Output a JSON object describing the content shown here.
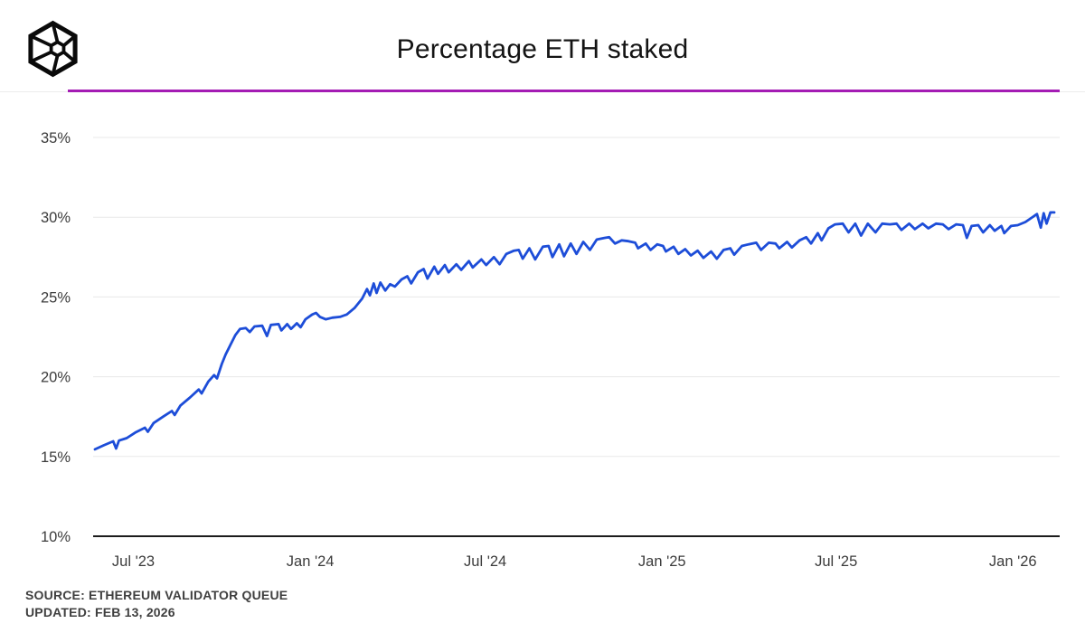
{
  "header": {
    "title": "Percentage ETH staked",
    "logo_name": "blockworks-cube-logo",
    "accent_color": "#a41cb4"
  },
  "footer": {
    "source": "SOURCE: ETHEREUM VALIDATOR QUEUE",
    "updated": "UPDATED: FEB 13, 2026"
  },
  "chart_data": {
    "type": "line",
    "title": "Percentage ETH staked",
    "xlabel": "",
    "ylabel": "",
    "ylim": [
      10,
      35
    ],
    "xlim": [
      "2023-05-22",
      "2026-02-13"
    ],
    "grid": "horizontal",
    "legend": "none",
    "y_ticks": [
      {
        "value": 10,
        "label": "10%"
      },
      {
        "value": 15,
        "label": "15%"
      },
      {
        "value": 20,
        "label": "20%"
      },
      {
        "value": 25,
        "label": "25%"
      },
      {
        "value": 30,
        "label": "30%"
      },
      {
        "value": 35,
        "label": "35%"
      }
    ],
    "x_ticks": [
      {
        "date": "2023-07-01",
        "label": "Jul '23"
      },
      {
        "date": "2024-01-01",
        "label": "Jan '24"
      },
      {
        "date": "2024-07-01",
        "label": "Jul '24"
      },
      {
        "date": "2025-01-01",
        "label": "Jan '25"
      },
      {
        "date": "2025-07-01",
        "label": "Jul '25"
      },
      {
        "date": "2026-01-01",
        "label": "Jan '26"
      }
    ],
    "series": [
      {
        "name": "Percentage ETH staked",
        "color": "#1d4dd8",
        "points": [
          [
            "2023-05-22",
            15.45
          ],
          [
            "2023-05-31",
            15.7
          ],
          [
            "2023-06-10",
            15.95
          ],
          [
            "2023-06-13",
            15.5
          ],
          [
            "2023-06-16",
            16.0
          ],
          [
            "2023-06-24",
            16.15
          ],
          [
            "2023-07-03",
            16.5
          ],
          [
            "2023-07-13",
            16.8
          ],
          [
            "2023-07-16",
            16.55
          ],
          [
            "2023-07-22",
            17.1
          ],
          [
            "2023-08-01",
            17.5
          ],
          [
            "2023-08-10",
            17.85
          ],
          [
            "2023-08-13",
            17.6
          ],
          [
            "2023-08-19",
            18.2
          ],
          [
            "2023-08-29",
            18.7
          ],
          [
            "2023-09-07",
            19.2
          ],
          [
            "2023-09-10",
            18.95
          ],
          [
            "2023-09-17",
            19.7
          ],
          [
            "2023-09-23",
            20.1
          ],
          [
            "2023-09-26",
            19.9
          ],
          [
            "2023-10-01",
            20.8
          ],
          [
            "2023-10-05",
            21.4
          ],
          [
            "2023-10-10",
            22.0
          ],
          [
            "2023-10-15",
            22.6
          ],
          [
            "2023-10-20",
            23.0
          ],
          [
            "2023-10-26",
            23.05
          ],
          [
            "2023-10-30",
            22.8
          ],
          [
            "2023-11-04",
            23.15
          ],
          [
            "2023-11-12",
            23.2
          ],
          [
            "2023-11-17",
            22.55
          ],
          [
            "2023-11-21",
            23.25
          ],
          [
            "2023-11-29",
            23.3
          ],
          [
            "2023-12-02",
            22.9
          ],
          [
            "2023-12-08",
            23.3
          ],
          [
            "2023-12-12",
            23.0
          ],
          [
            "2023-12-18",
            23.35
          ],
          [
            "2023-12-22",
            23.1
          ],
          [
            "2023-12-27",
            23.6
          ],
          [
            "2024-01-03",
            23.9
          ],
          [
            "2024-01-07",
            24.0
          ],
          [
            "2024-01-11",
            23.75
          ],
          [
            "2024-01-17",
            23.6
          ],
          [
            "2024-01-24",
            23.7
          ],
          [
            "2024-02-01",
            23.75
          ],
          [
            "2024-02-08",
            23.9
          ],
          [
            "2024-02-16",
            24.3
          ],
          [
            "2024-02-24",
            24.9
          ],
          [
            "2024-02-29",
            25.5
          ],
          [
            "2024-03-03",
            25.1
          ],
          [
            "2024-03-07",
            25.85
          ],
          [
            "2024-03-10",
            25.25
          ],
          [
            "2024-03-14",
            25.9
          ],
          [
            "2024-03-19",
            25.4
          ],
          [
            "2024-03-24",
            25.8
          ],
          [
            "2024-03-29",
            25.65
          ],
          [
            "2024-04-05",
            26.1
          ],
          [
            "2024-04-11",
            26.3
          ],
          [
            "2024-04-15",
            25.85
          ],
          [
            "2024-04-22",
            26.55
          ],
          [
            "2024-04-28",
            26.75
          ],
          [
            "2024-05-02",
            26.15
          ],
          [
            "2024-05-09",
            26.9
          ],
          [
            "2024-05-13",
            26.45
          ],
          [
            "2024-05-20",
            27.0
          ],
          [
            "2024-05-24",
            26.55
          ],
          [
            "2024-06-01",
            27.05
          ],
          [
            "2024-06-06",
            26.7
          ],
          [
            "2024-06-14",
            27.25
          ],
          [
            "2024-06-18",
            26.85
          ],
          [
            "2024-06-27",
            27.35
          ],
          [
            "2024-07-02",
            27.0
          ],
          [
            "2024-07-10",
            27.5
          ],
          [
            "2024-07-16",
            27.05
          ],
          [
            "2024-07-23",
            27.7
          ],
          [
            "2024-07-31",
            27.9
          ],
          [
            "2024-08-05",
            27.95
          ],
          [
            "2024-08-09",
            27.4
          ],
          [
            "2024-08-16",
            28.05
          ],
          [
            "2024-08-22",
            27.35
          ],
          [
            "2024-08-30",
            28.15
          ],
          [
            "2024-09-05",
            28.2
          ],
          [
            "2024-09-09",
            27.5
          ],
          [
            "2024-09-16",
            28.3
          ],
          [
            "2024-09-21",
            27.55
          ],
          [
            "2024-09-28",
            28.35
          ],
          [
            "2024-10-04",
            27.7
          ],
          [
            "2024-10-11",
            28.45
          ],
          [
            "2024-10-18",
            27.95
          ],
          [
            "2024-10-25",
            28.6
          ],
          [
            "2024-11-02",
            28.7
          ],
          [
            "2024-11-07",
            28.75
          ],
          [
            "2024-11-13",
            28.35
          ],
          [
            "2024-11-20",
            28.55
          ],
          [
            "2024-11-27",
            28.5
          ],
          [
            "2024-12-04",
            28.4
          ],
          [
            "2024-12-07",
            28.05
          ],
          [
            "2024-12-15",
            28.35
          ],
          [
            "2024-12-20",
            27.95
          ],
          [
            "2024-12-27",
            28.3
          ],
          [
            "2025-01-02",
            28.2
          ],
          [
            "2025-01-05",
            27.85
          ],
          [
            "2025-01-13",
            28.15
          ],
          [
            "2025-01-18",
            27.7
          ],
          [
            "2025-01-25",
            28.0
          ],
          [
            "2025-01-31",
            27.6
          ],
          [
            "2025-02-07",
            27.9
          ],
          [
            "2025-02-13",
            27.45
          ],
          [
            "2025-02-21",
            27.85
          ],
          [
            "2025-02-27",
            27.4
          ],
          [
            "2025-03-06",
            27.95
          ],
          [
            "2025-03-13",
            28.05
          ],
          [
            "2025-03-17",
            27.65
          ],
          [
            "2025-03-25",
            28.2
          ],
          [
            "2025-04-01",
            28.3
          ],
          [
            "2025-04-09",
            28.4
          ],
          [
            "2025-04-14",
            27.95
          ],
          [
            "2025-04-22",
            28.4
          ],
          [
            "2025-04-29",
            28.35
          ],
          [
            "2025-05-03",
            28.05
          ],
          [
            "2025-05-11",
            28.45
          ],
          [
            "2025-05-16",
            28.1
          ],
          [
            "2025-05-24",
            28.55
          ],
          [
            "2025-05-31",
            28.75
          ],
          [
            "2025-06-05",
            28.35
          ],
          [
            "2025-06-12",
            29.0
          ],
          [
            "2025-06-16",
            28.55
          ],
          [
            "2025-06-23",
            29.3
          ],
          [
            "2025-06-30",
            29.55
          ],
          [
            "2025-07-08",
            29.6
          ],
          [
            "2025-07-14",
            29.05
          ],
          [
            "2025-07-21",
            29.6
          ],
          [
            "2025-07-27",
            28.85
          ],
          [
            "2025-08-03",
            29.6
          ],
          [
            "2025-08-11",
            29.05
          ],
          [
            "2025-08-18",
            29.6
          ],
          [
            "2025-08-26",
            29.55
          ],
          [
            "2025-09-02",
            29.6
          ],
          [
            "2025-09-07",
            29.2
          ],
          [
            "2025-09-15",
            29.6
          ],
          [
            "2025-09-21",
            29.25
          ],
          [
            "2025-09-29",
            29.6
          ],
          [
            "2025-10-05",
            29.3
          ],
          [
            "2025-10-13",
            29.6
          ],
          [
            "2025-10-20",
            29.55
          ],
          [
            "2025-10-26",
            29.25
          ],
          [
            "2025-11-03",
            29.55
          ],
          [
            "2025-11-10",
            29.5
          ],
          [
            "2025-11-14",
            28.7
          ],
          [
            "2025-11-19",
            29.45
          ],
          [
            "2025-11-26",
            29.5
          ],
          [
            "2025-12-01",
            29.05
          ],
          [
            "2025-12-08",
            29.5
          ],
          [
            "2025-12-13",
            29.15
          ],
          [
            "2025-12-20",
            29.45
          ],
          [
            "2025-12-23",
            29.0
          ],
          [
            "2025-12-30",
            29.45
          ],
          [
            "2026-01-06",
            29.5
          ],
          [
            "2026-01-14",
            29.7
          ],
          [
            "2026-01-20",
            29.95
          ],
          [
            "2026-01-26",
            30.2
          ],
          [
            "2026-01-30",
            29.35
          ],
          [
            "2026-02-02",
            30.25
          ],
          [
            "2026-02-05",
            29.6
          ],
          [
            "2026-02-09",
            30.3
          ],
          [
            "2026-02-13",
            30.3
          ]
        ]
      }
    ]
  }
}
